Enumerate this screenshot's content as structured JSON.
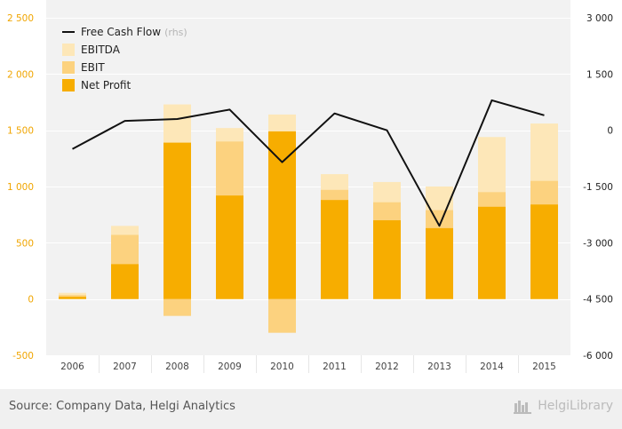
{
  "chart_data": {
    "type": "bar",
    "categories": [
      "2006",
      "2007",
      "2008",
      "2009",
      "2010",
      "2011",
      "2012",
      "2013",
      "2014",
      "2015"
    ],
    "series": [
      {
        "name": "EBITDA",
        "values": [
          55,
          650,
          1730,
          1520,
          1640,
          1110,
          1040,
          1000,
          1440,
          1560
        ],
        "color": "#fde7b8"
      },
      {
        "name": "EBIT",
        "values": [
          35,
          570,
          -150,
          1400,
          -300,
          970,
          860,
          790,
          950,
          1050
        ],
        "color": "#fcd27f"
      },
      {
        "name": "Net Profit",
        "values": [
          20,
          310,
          1390,
          920,
          1490,
          880,
          700,
          630,
          820,
          840
        ],
        "color": "#f7ad00"
      },
      {
        "name": "Free Cash Flow",
        "axis": "rhs",
        "values": [
          -500,
          250,
          300,
          550,
          -850,
          450,
          0,
          -2550,
          800,
          400
        ],
        "color": "#111111"
      }
    ],
    "yaxis_left": {
      "ylim": [
        -500,
        2500
      ],
      "ticks": [
        "-500",
        "0",
        "500",
        "1 000",
        "1 500",
        "2 000",
        "2 500"
      ],
      "tick_values": [
        -500,
        0,
        500,
        1000,
        1500,
        2000,
        2500
      ],
      "color": "#f0a500"
    },
    "yaxis_right": {
      "ylim": [
        -6000,
        3000
      ],
      "ticks": [
        "-6 000",
        "-4 500",
        "-3 000",
        "-1 500",
        "0",
        "1 500",
        "3 000"
      ],
      "tick_values": [
        -6000,
        -4500,
        -3000,
        -1500,
        0,
        1500,
        3000
      ]
    },
    "legend": {
      "placement": "top-left",
      "items": [
        {
          "label": "Free Cash Flow",
          "suffix": "(rhs)",
          "kind": "line",
          "color": "#111111"
        },
        {
          "label": "EBITDA",
          "kind": "box",
          "color": "#fde7b8"
        },
        {
          "label": "EBIT",
          "kind": "box",
          "color": "#fcd27f"
        },
        {
          "label": "Net Profit",
          "kind": "box",
          "color": "#f7ad00"
        }
      ]
    },
    "grid": true
  },
  "footer": {
    "source": "Source: Company Data, Helgi Analytics",
    "brand": "HelgiLibrary"
  }
}
